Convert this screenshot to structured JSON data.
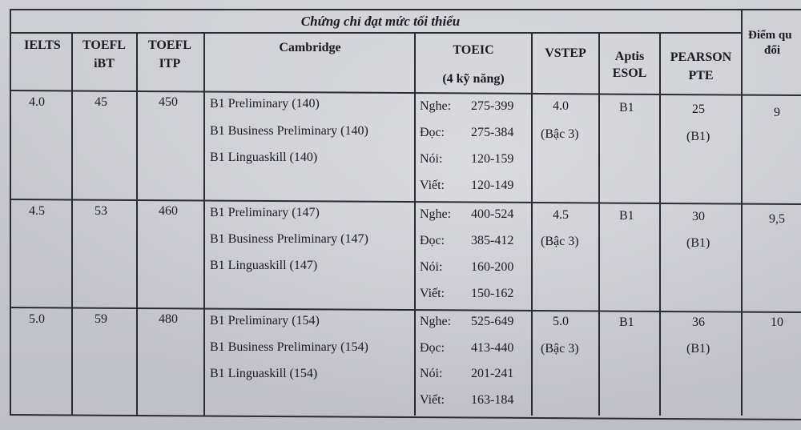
{
  "table": {
    "title": "Chứng chỉ đạt mức tối thiểu",
    "headers": {
      "ielts": "IELTS",
      "toefl_ibt": [
        "TOEFL",
        "iBT"
      ],
      "toefl_itp": [
        "TOEFL",
        "ITP"
      ],
      "cambridge": "Cambridge",
      "toeic": [
        "TOEIC",
        "(4 kỹ năng)"
      ],
      "vstep": "VSTEP",
      "aptis": [
        "Aptis",
        "ESOL"
      ],
      "pearson": [
        "PEARSON",
        "PTE"
      ],
      "score": [
        "Điểm qu",
        "đổi"
      ]
    },
    "rows": [
      {
        "ielts": "4.0",
        "toefl_ibt": "45",
        "toefl_itp": "450",
        "cambridge": [
          "B1 Preliminary (140)",
          "B1 Business Preliminary (140)",
          "B1 Linguaskill (140)"
        ],
        "toeic": [
          {
            "skill": "Nghe:",
            "range": "275-399"
          },
          {
            "skill": "Đọc:",
            "range": "275-384"
          },
          {
            "skill": "Nói:",
            "range": "120-159"
          },
          {
            "skill": "Viết:",
            "range": "120-149"
          }
        ],
        "vstep": [
          "4.0",
          "(Bậc 3)"
        ],
        "aptis": "B1",
        "pearson": [
          "25",
          "(B1)"
        ],
        "score": "9"
      },
      {
        "ielts": "4.5",
        "toefl_ibt": "53",
        "toefl_itp": "460",
        "cambridge": [
          "B1 Preliminary (147)",
          "B1 Business Preliminary (147)",
          "B1 Linguaskill (147)"
        ],
        "toeic": [
          {
            "skill": "Nghe:",
            "range": "400-524"
          },
          {
            "skill": "Đọc:",
            "range": "385-412"
          },
          {
            "skill": "Nói:",
            "range": "160-200"
          },
          {
            "skill": "Viết:",
            "range": "150-162"
          }
        ],
        "vstep": [
          "4.5",
          "(Bậc 3)"
        ],
        "aptis": "B1",
        "pearson": [
          "30",
          "(B1)"
        ],
        "score": "9,5"
      },
      {
        "ielts": "5.0",
        "toefl_ibt": "59",
        "toefl_itp": "480",
        "cambridge": [
          "B1 Preliminary (154)",
          "B1 Business Preliminary (154)",
          "B1 Linguaskill (154)"
        ],
        "toeic": [
          {
            "skill": "Nghe:",
            "range": "525-649"
          },
          {
            "skill": "Đọc:",
            "range": "413-440"
          },
          {
            "skill": "Nói:",
            "range": "201-241"
          },
          {
            "skill": "Viết:",
            "range": "163-184"
          }
        ],
        "vstep": [
          "5.0",
          "(Bậc 3)"
        ],
        "aptis": "B1",
        "pearson": [
          "36",
          "(B1)"
        ],
        "score": "10"
      }
    ]
  },
  "colors": {
    "paper": "#d4d5da",
    "ink": "#1a1b22",
    "rule": "#2a2b33"
  }
}
